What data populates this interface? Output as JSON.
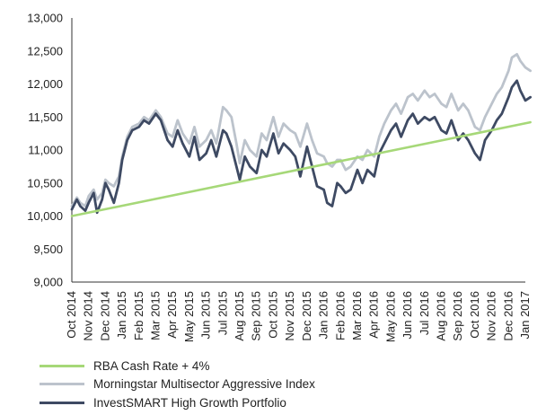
{
  "chart_data": {
    "type": "line",
    "title": "",
    "xlabel": "",
    "ylabel": "",
    "ylim": [
      9000,
      13000
    ],
    "y_ticks": [
      "9,000",
      "9,500",
      "10,000",
      "10,500",
      "11,000",
      "11,500",
      "12,000",
      "12,500",
      "13,000"
    ],
    "y_tick_values": [
      9000,
      9500,
      10000,
      10500,
      11000,
      11500,
      12000,
      12500,
      13000
    ],
    "x_ticks": [
      "Oct 2014",
      "Nov 2014",
      "Dec 2014",
      "Jan 2015",
      "Feb 2015",
      "Mar 2015",
      "Apr 2015",
      "May 2015",
      "Jun 2015",
      "Jul 2015",
      "Aug 2015",
      "Sep 2015",
      "Oct 2015",
      "Nov 2015",
      "Dec 2015",
      "Jan 2016",
      "Feb 2016",
      "Mar 2016",
      "Apr 2016",
      "May 2016",
      "Jun 2016",
      "Jul 2016",
      "Aug 2016",
      "Sep 2016",
      "Oct 2016",
      "Nov 2016",
      "Dec 2016",
      "Jan 2017"
    ],
    "legend_position": "bottom-left",
    "series": [
      {
        "name": "RBA Cash Rate + 4%",
        "color": "#a6d878",
        "x": [
          0,
          27.3
        ],
        "values": [
          10000,
          11420
        ]
      },
      {
        "name": "Morningstar Multisector Aggressive Index",
        "color": "#bcc3cc",
        "x": [
          0,
          0.3,
          0.5,
          0.8,
          1.0,
          1.3,
          1.5,
          1.8,
          2.0,
          2.2,
          2.5,
          2.8,
          3.0,
          3.3,
          3.6,
          4.0,
          4.3,
          4.6,
          5.0,
          5.3,
          5.7,
          6.0,
          6.3,
          6.6,
          7.0,
          7.3,
          7.6,
          8.0,
          8.3,
          8.6,
          9.0,
          9.2,
          9.5,
          9.8,
          10.0,
          10.3,
          10.6,
          11.0,
          11.3,
          11.6,
          12.0,
          12.3,
          12.6,
          13.0,
          13.3,
          13.6,
          14.0,
          14.3,
          14.6,
          15.0,
          15.2,
          15.5,
          15.8,
          16.0,
          16.3,
          16.6,
          17.0,
          17.3,
          17.6,
          18.0,
          18.3,
          18.6,
          19.0,
          19.3,
          19.6,
          20.0,
          20.3,
          20.6,
          21.0,
          21.3,
          21.6,
          22.0,
          22.3,
          22.6,
          23.0,
          23.3,
          23.6,
          24.0,
          24.3,
          24.6,
          25.0,
          25.3,
          25.6,
          26.0,
          26.2,
          26.5,
          26.7,
          27.0,
          27.3
        ],
        "values": [
          10150,
          10280,
          10200,
          10150,
          10300,
          10400,
          10250,
          10350,
          10550,
          10500,
          10450,
          10600,
          10900,
          11200,
          11350,
          11400,
          11500,
          11450,
          11600,
          11500,
          11250,
          11200,
          11450,
          11250,
          11100,
          11350,
          11050,
          11150,
          11300,
          11100,
          11650,
          11600,
          11500,
          11100,
          10800,
          11150,
          11000,
          10900,
          11250,
          11150,
          11500,
          11200,
          11400,
          11300,
          11250,
          11050,
          11400,
          11150,
          10950,
          10900,
          10800,
          10750,
          10850,
          10850,
          10700,
          10750,
          10900,
          10850,
          11000,
          10900,
          11200,
          11400,
          11600,
          11700,
          11550,
          11800,
          11850,
          11750,
          11900,
          11800,
          11850,
          11700,
          11650,
          11850,
          11600,
          11700,
          11600,
          11350,
          11300,
          11500,
          11700,
          11850,
          11950,
          12200,
          12400,
          12450,
          12350,
          12250,
          12200
        ]
      },
      {
        "name": "InvestSMART High Growth Portfolio",
        "color": "#3e4a63",
        "x": [
          0,
          0.3,
          0.5,
          0.8,
          1.0,
          1.3,
          1.5,
          1.8,
          2.0,
          2.2,
          2.5,
          2.8,
          3.0,
          3.3,
          3.6,
          4.0,
          4.3,
          4.6,
          5.0,
          5.3,
          5.7,
          6.0,
          6.3,
          6.6,
          7.0,
          7.3,
          7.6,
          8.0,
          8.3,
          8.6,
          9.0,
          9.2,
          9.5,
          9.8,
          10.0,
          10.3,
          10.6,
          11.0,
          11.3,
          11.6,
          12.0,
          12.3,
          12.6,
          13.0,
          13.3,
          13.6,
          14.0,
          14.3,
          14.6,
          15.0,
          15.2,
          15.5,
          15.8,
          16.0,
          16.3,
          16.6,
          17.0,
          17.3,
          17.6,
          18.0,
          18.3,
          18.6,
          19.0,
          19.3,
          19.6,
          20.0,
          20.3,
          20.6,
          21.0,
          21.3,
          21.6,
          22.0,
          22.3,
          22.6,
          23.0,
          23.3,
          23.6,
          24.0,
          24.3,
          24.6,
          25.0,
          25.3,
          25.6,
          26.0,
          26.2,
          26.5,
          26.7,
          27.0,
          27.3
        ],
        "values": [
          10100,
          10250,
          10150,
          10080,
          10200,
          10350,
          10050,
          10250,
          10500,
          10400,
          10200,
          10500,
          10850,
          11150,
          11300,
          11350,
          11450,
          11400,
          11550,
          11450,
          11150,
          11050,
          11300,
          11100,
          10900,
          11200,
          10850,
          10950,
          11150,
          10900,
          11300,
          11250,
          11050,
          10750,
          10550,
          10900,
          10750,
          10650,
          11000,
          10900,
          11250,
          10950,
          11100,
          11000,
          10900,
          10600,
          11050,
          10750,
          10450,
          10400,
          10200,
          10150,
          10500,
          10450,
          10350,
          10400,
          10700,
          10500,
          10700,
          10600,
          10950,
          11100,
          11300,
          11400,
          11200,
          11450,
          11550,
          11400,
          11500,
          11450,
          11500,
          11300,
          11250,
          11450,
          11150,
          11250,
          11150,
          10950,
          10850,
          11150,
          11300,
          11450,
          11550,
          11800,
          11950,
          12050,
          11900,
          11750,
          11800
        ]
      }
    ]
  }
}
